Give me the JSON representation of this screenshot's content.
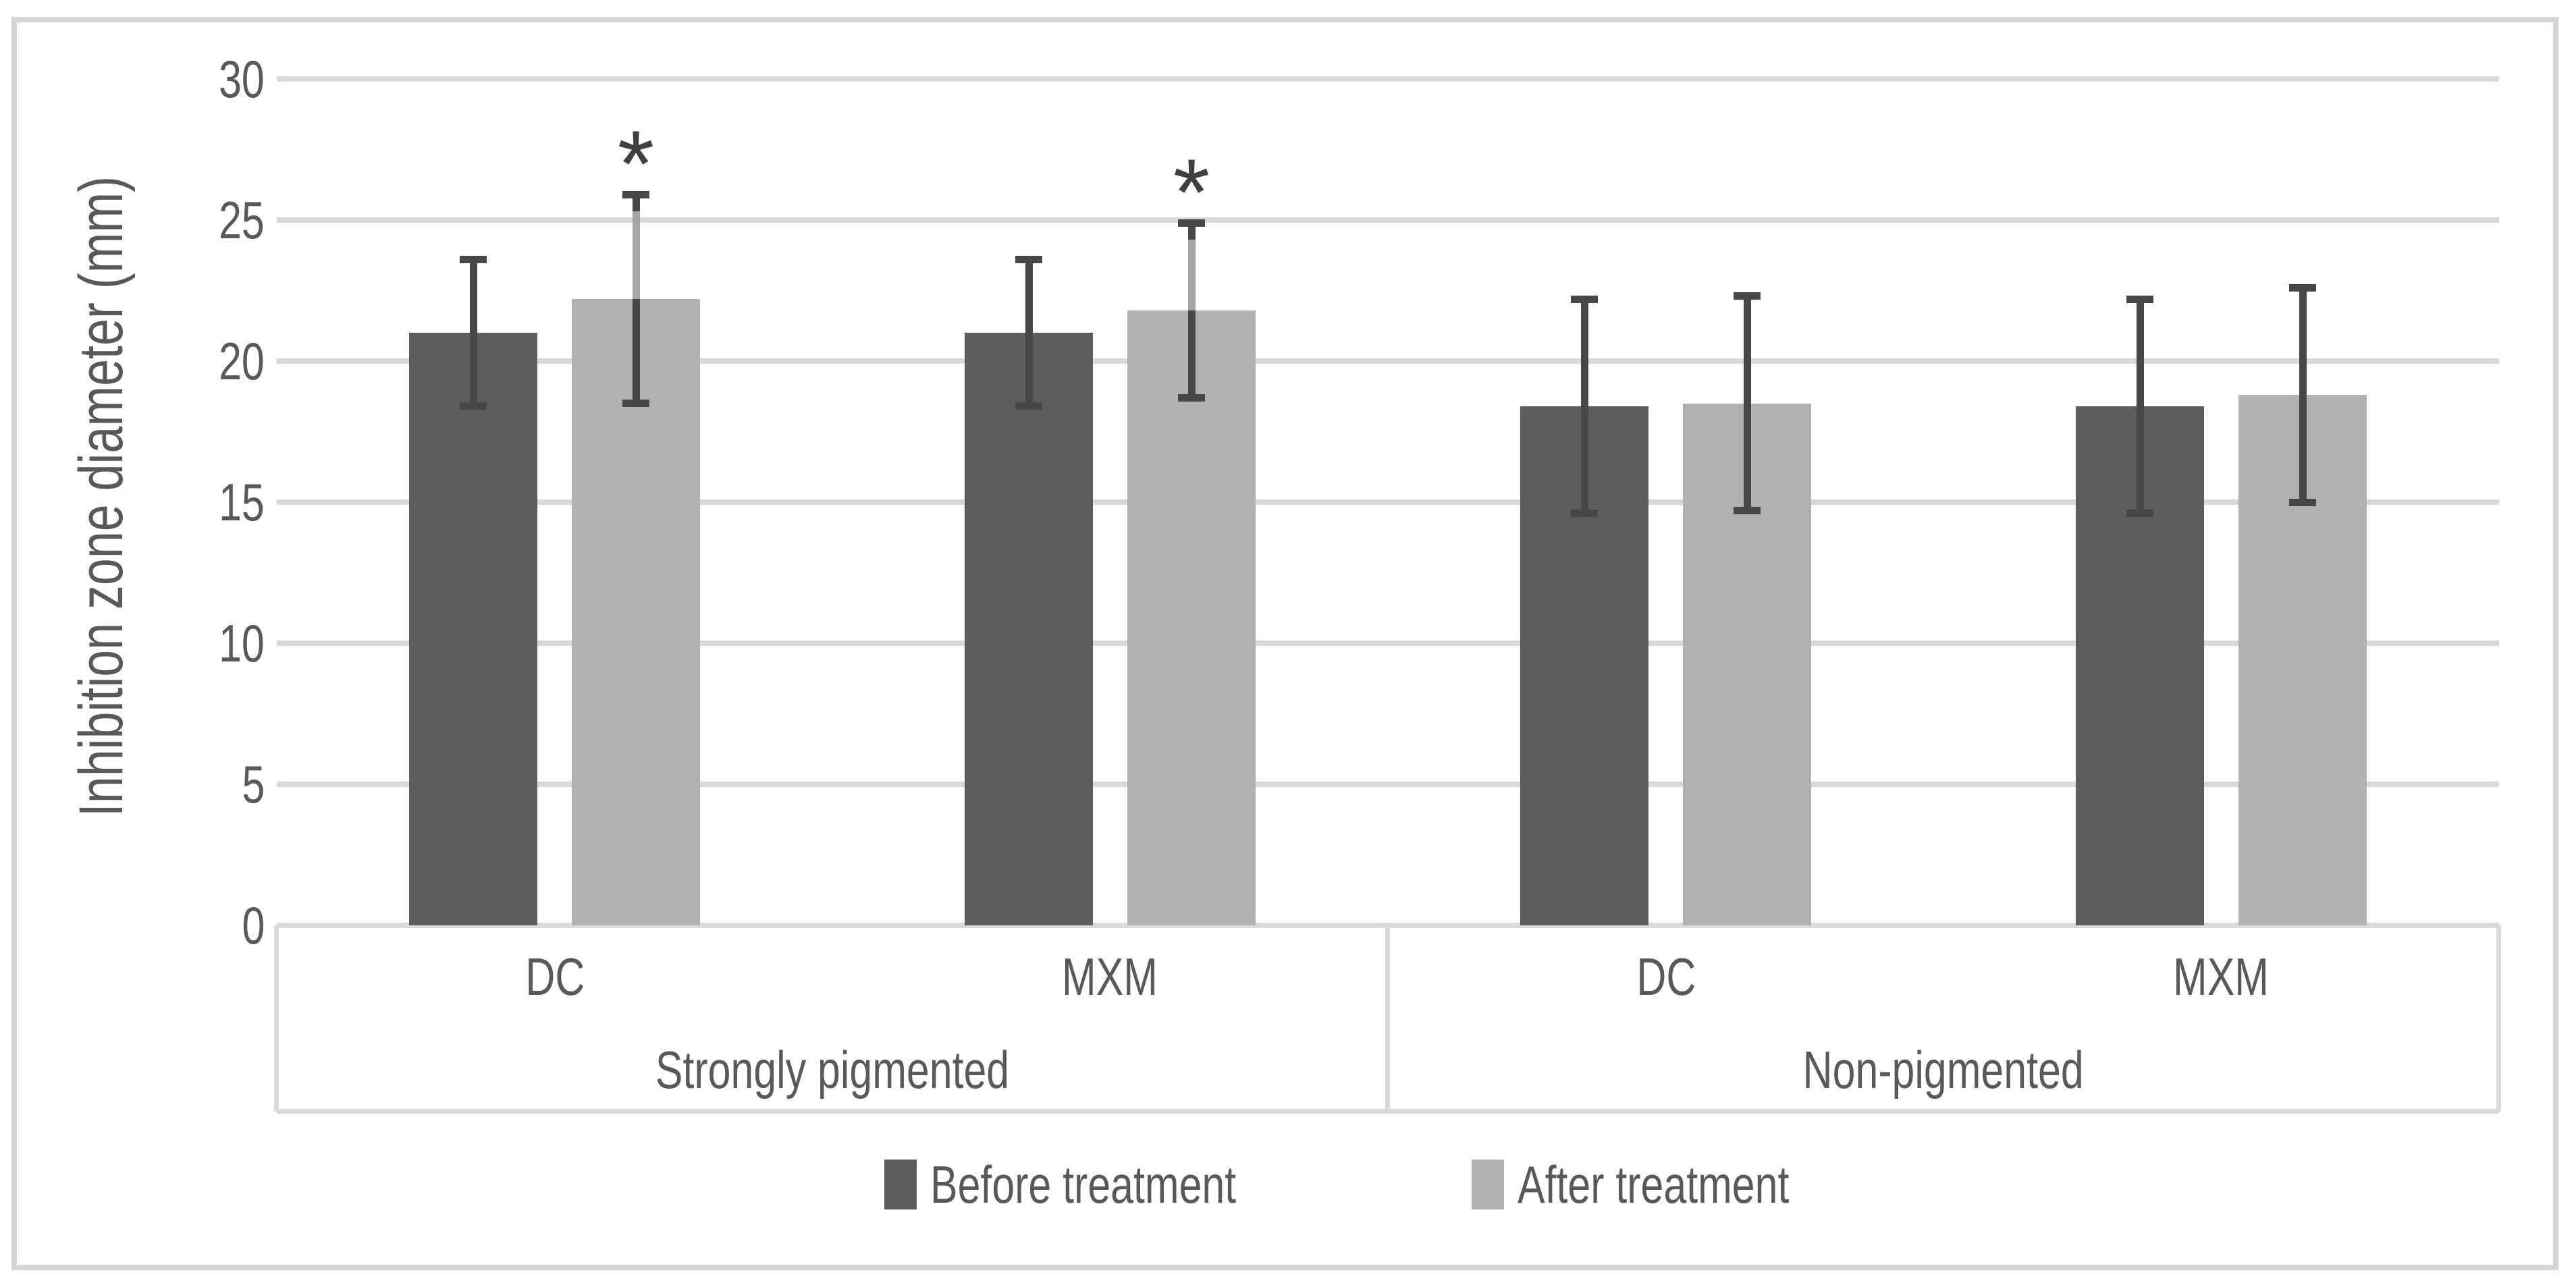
{
  "figure": {
    "background": "#ffffff",
    "border_color": "#d5d5d5",
    "gridline_color": "#d9d9d9",
    "text_color": "#595959"
  },
  "chart_data": {
    "type": "bar",
    "title": "",
    "xlabel": "",
    "ylabel": "Inhibition zone diameter (mm)",
    "ylim": [
      0,
      30
    ],
    "yticks": [
      0,
      5,
      10,
      15,
      20,
      25,
      30
    ],
    "grid": true,
    "legend_position": "bottom",
    "group_labels": [
      "Strongly pigmented",
      "Non-pigmented"
    ],
    "categories": [
      {
        "label": "DC",
        "group": "Strongly pigmented"
      },
      {
        "label": "MXM",
        "group": "Strongly pigmented"
      },
      {
        "label": "DC",
        "group": "Non-pigmented"
      },
      {
        "label": "MXM",
        "group": "Non-pigmented"
      }
    ],
    "error_bar_color": "#474747",
    "error_bar_light_color": "#a6a6a6",
    "significance_symbol_color": "#404040",
    "series": [
      {
        "name": "Before treatment",
        "color": "#5d5d5d",
        "values": [
          21.0,
          21.0,
          18.4,
          18.4
        ],
        "error_low": [
          18.4,
          18.4,
          14.6,
          14.6
        ],
        "error_high": [
          23.6,
          23.6,
          22.2,
          22.2
        ],
        "significance": [
          "",
          "",
          "",
          ""
        ],
        "error_line_above_bar": [
          "dark",
          "dark",
          "dark",
          "dark"
        ]
      },
      {
        "name": "After treatment",
        "color": "#b1b1b1",
        "values": [
          22.2,
          21.8,
          18.5,
          18.8
        ],
        "error_low": [
          18.5,
          18.7,
          14.7,
          15.0
        ],
        "error_high": [
          25.9,
          24.9,
          22.3,
          22.6
        ],
        "significance": [
          "*",
          "*",
          "",
          ""
        ],
        "error_line_above_bar": [
          "light",
          "light",
          "dark",
          "dark"
        ]
      }
    ]
  }
}
